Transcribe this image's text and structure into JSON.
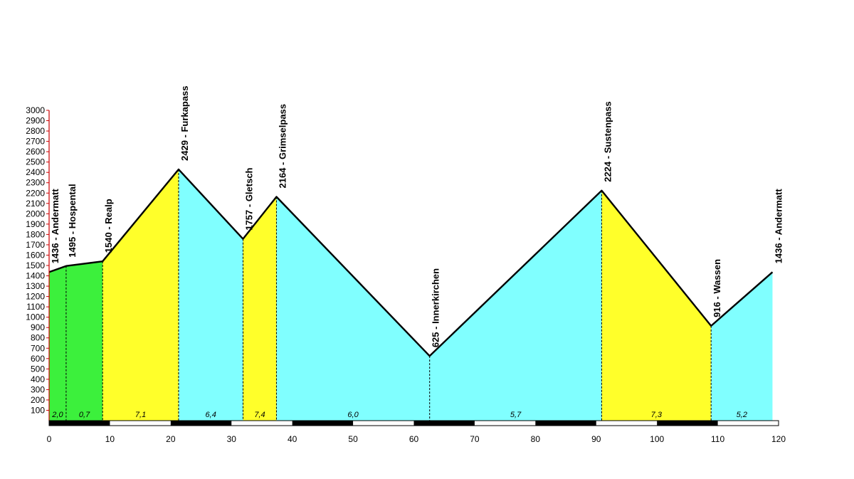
{
  "chart_data": {
    "type": "area",
    "title": "",
    "xlabel": "",
    "ylabel": "",
    "xlim": [
      0,
      120
    ],
    "ylim": [
      0,
      3000
    ],
    "x_ticks": [
      0,
      10,
      20,
      30,
      40,
      50,
      60,
      70,
      80,
      90,
      100,
      110,
      120
    ],
    "y_ticks": [
      100,
      200,
      300,
      400,
      500,
      600,
      700,
      800,
      900,
      1000,
      1100,
      1200,
      1300,
      1400,
      1500,
      1600,
      1700,
      1800,
      1900,
      2000,
      2100,
      2200,
      2300,
      2400,
      2500,
      2600,
      2700,
      2800,
      2900,
      3000
    ],
    "grid": false,
    "points": [
      {
        "km": 0,
        "elevation": 1436,
        "label": "1436 - Andermatt"
      },
      {
        "km": 2.8,
        "elevation": 1495,
        "label": "1495 - Hospental"
      },
      {
        "km": 8.8,
        "elevation": 1540,
        "label": "1540 - Realp"
      },
      {
        "km": 21.3,
        "elevation": 2429,
        "label": "2429 - Furkapass"
      },
      {
        "km": 31.9,
        "elevation": 1757,
        "label": "1757 - Gletsch"
      },
      {
        "km": 37.4,
        "elevation": 2164,
        "label": "2164 - Grimselpass"
      },
      {
        "km": 62.6,
        "elevation": 625,
        "label": "625 - Innerkirchen"
      },
      {
        "km": 90.9,
        "elevation": 2224,
        "label": "2224 - Sustenpass"
      },
      {
        "km": 108.9,
        "elevation": 916,
        "label": "916 - Wassen"
      },
      {
        "km": 119.0,
        "elevation": 1436,
        "label": "1436 - Andermatt"
      }
    ],
    "segments": [
      {
        "from_km": 0,
        "to_km": 2.8,
        "gradient": "2,0",
        "color": "#3cf03c"
      },
      {
        "from_km": 2.8,
        "to_km": 8.8,
        "gradient": "0,7",
        "color": "#3cf03c"
      },
      {
        "from_km": 8.8,
        "to_km": 21.3,
        "gradient": "7,1",
        "color": "#ffff2a"
      },
      {
        "from_km": 21.3,
        "to_km": 31.9,
        "gradient": "6,4",
        "color": "#80ffff"
      },
      {
        "from_km": 31.9,
        "to_km": 37.4,
        "gradient": "7,4",
        "color": "#ffff2a"
      },
      {
        "from_km": 37.4,
        "to_km": 62.6,
        "gradient": "6,0",
        "color": "#80ffff"
      },
      {
        "from_km": 62.6,
        "to_km": 90.9,
        "gradient": "5,7",
        "color": "#80ffff"
      },
      {
        "from_km": 90.9,
        "to_km": 108.9,
        "gradient": "7,3",
        "color": "#ffff2a"
      },
      {
        "from_km": 108.9,
        "to_km": 119.0,
        "gradient": "5,2",
        "color": "#80ffff"
      }
    ],
    "colors": {
      "axis_left": "#cc0000",
      "outline": "#000000",
      "scale_dark": "#000000",
      "scale_light": "#ffffff"
    }
  }
}
